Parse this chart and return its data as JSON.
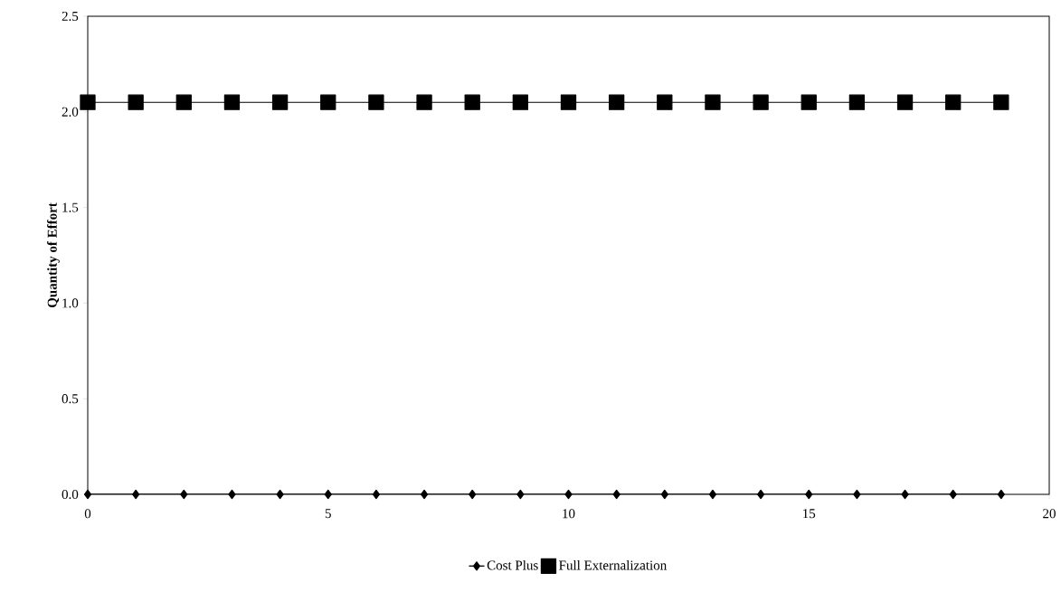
{
  "chart_data": {
    "type": "line",
    "ylabel": "Quantity of Effort",
    "x": [
      0,
      1,
      2,
      3,
      4,
      5,
      6,
      7,
      8,
      9,
      10,
      11,
      12,
      13,
      14,
      15,
      16,
      17,
      18,
      19
    ],
    "series": [
      {
        "name": "Cost Plus",
        "color": "#000000",
        "marker": "diamond",
        "values": [
          0,
          0,
          0,
          0,
          0,
          0,
          0,
          0,
          0,
          0,
          0,
          0,
          0,
          0,
          0,
          0,
          0,
          0,
          0,
          0
        ]
      },
      {
        "name": "Full Externalization",
        "color": "#000000",
        "marker": "square",
        "values": [
          2.05,
          2.05,
          2.05,
          2.05,
          2.05,
          2.05,
          2.05,
          2.05,
          2.05,
          2.05,
          2.05,
          2.05,
          2.05,
          2.05,
          2.05,
          2.05,
          2.05,
          2.05,
          2.05,
          2.05
        ]
      }
    ],
    "xlim": [
      0,
      20
    ],
    "xticks": [
      0,
      5,
      10,
      15,
      20
    ],
    "ylim": [
      0,
      2.5
    ],
    "yticks": [
      {
        "value": 0,
        "label": "0.0"
      },
      0.5,
      {
        "value": 1,
        "label": "1.0"
      },
      1.5,
      {
        "value": 2,
        "label": "2.0"
      },
      2.5
    ],
    "grid": false,
    "legend": "bottom",
    "line_style": "solid"
  }
}
